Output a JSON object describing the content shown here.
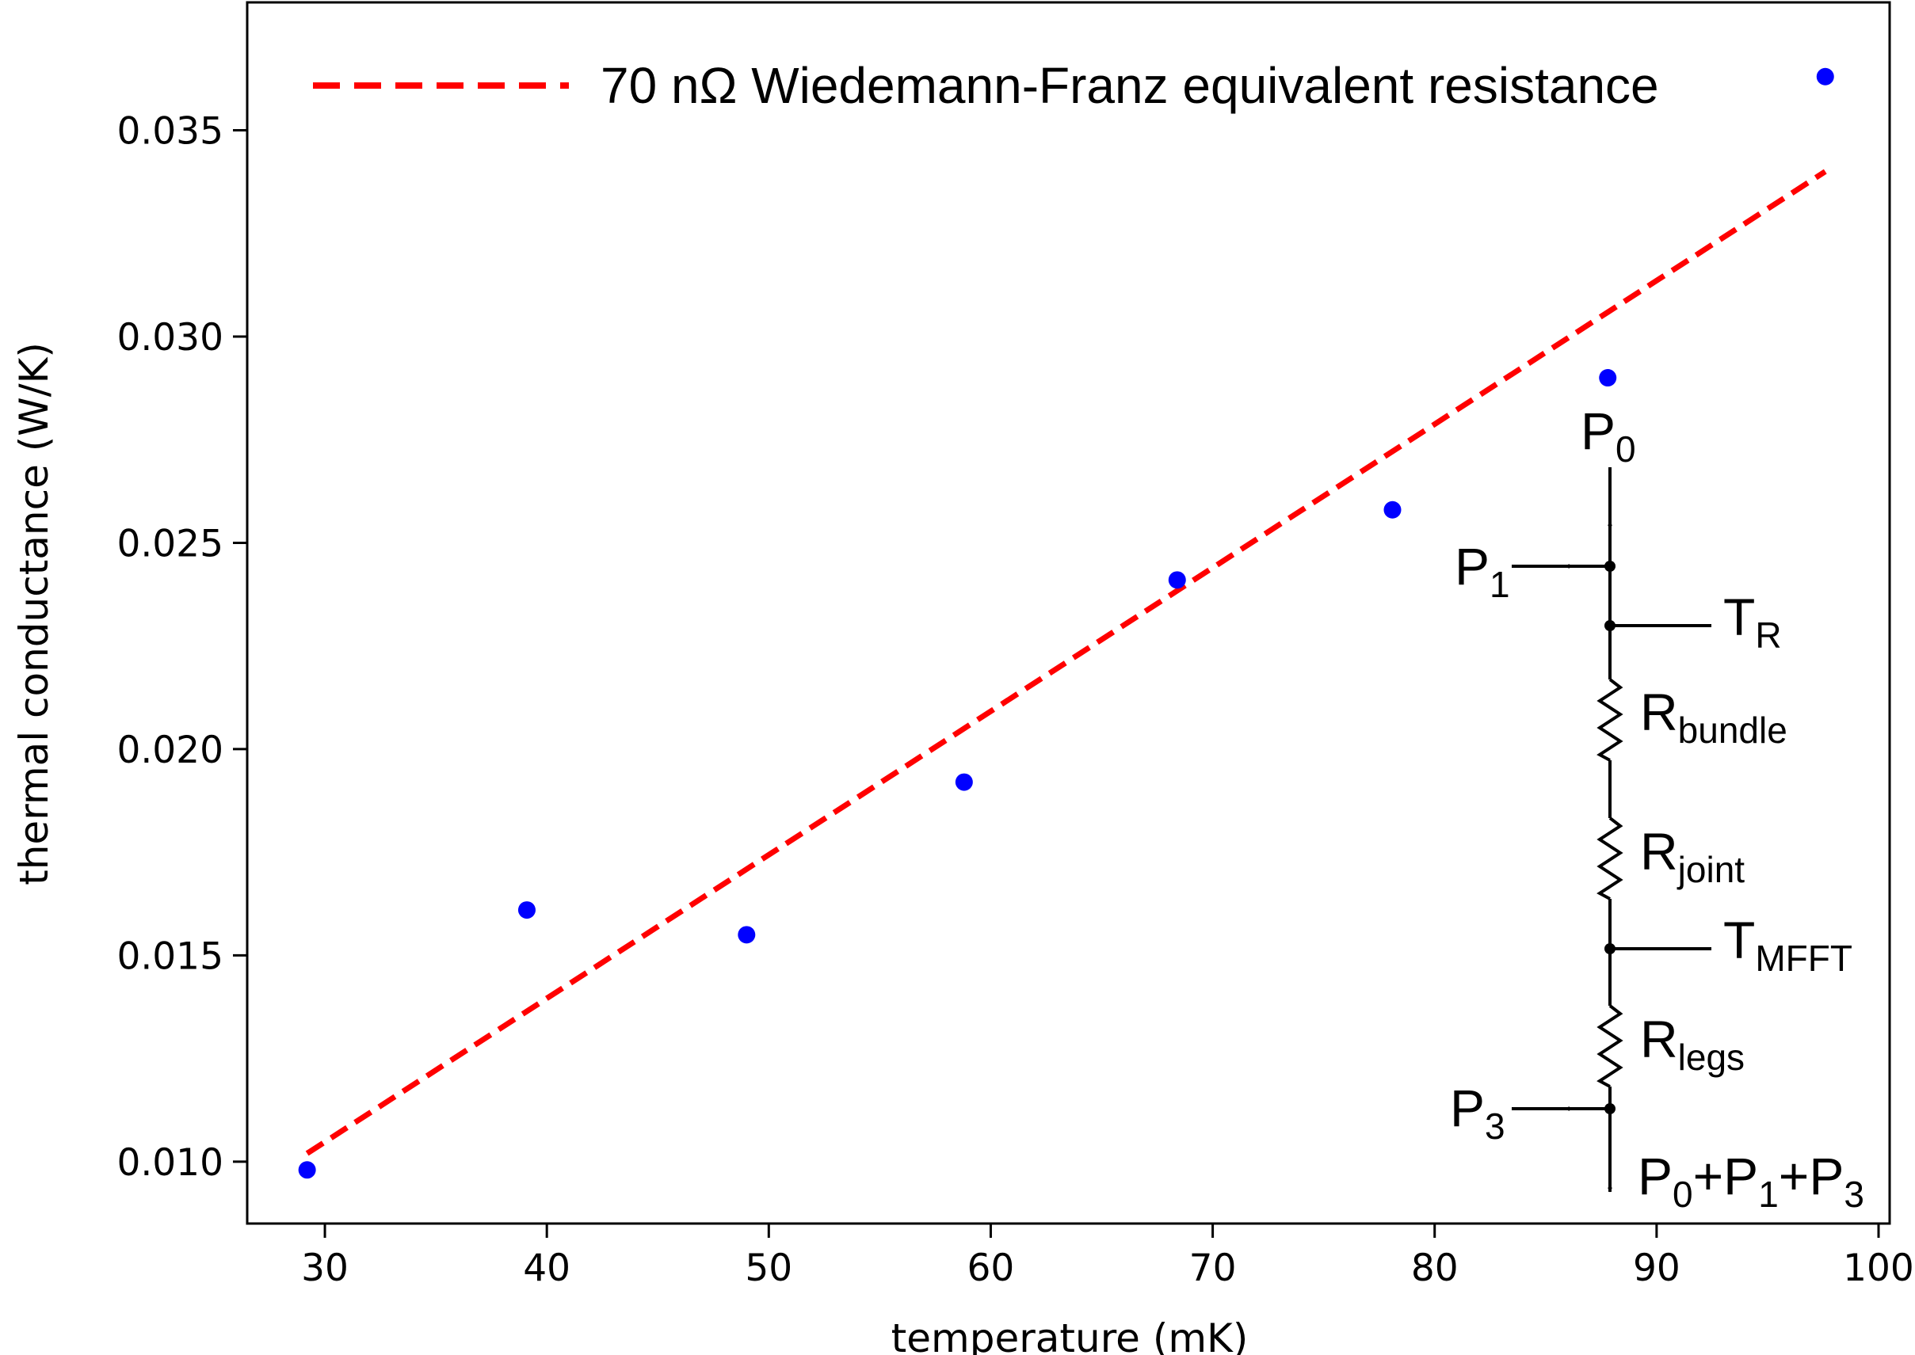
{
  "chart_data": {
    "type": "scatter",
    "xlabel": "temperature (mK)",
    "ylabel": "thermal conductance (W/K)",
    "xlim": [
      26.5,
      100.5
    ],
    "ylim": [
      0.0085,
      0.0381
    ],
    "xticks": [
      30,
      40,
      50,
      60,
      70,
      80,
      90,
      100
    ],
    "yticks": [
      0.01,
      0.015,
      0.02,
      0.025,
      0.03,
      0.035
    ],
    "xtick_labels": [
      "30",
      "40",
      "50",
      "60",
      "70",
      "80",
      "90",
      "100"
    ],
    "ytick_labels": [
      "0.010",
      "0.015",
      "0.020",
      "0.025",
      "0.030",
      "0.035"
    ],
    "grid": false,
    "legend_position": "top",
    "series": [
      {
        "kind": "scatter",
        "color": "#0000ff",
        "x": [
          29.2,
          39.1,
          49.0,
          58.8,
          68.4,
          78.1,
          87.8,
          97.6
        ],
        "y": [
          0.0098,
          0.0161,
          0.0155,
          0.0192,
          0.0241,
          0.0258,
          0.029,
          0.0363
        ]
      },
      {
        "kind": "line",
        "name": "70 nΩ Wiedemann-Franz equivalent resistance",
        "color": "#ff0000",
        "dash": "dashed",
        "x": [
          29.2,
          97.6
        ],
        "y": [
          0.0102,
          0.034
        ]
      }
    ]
  },
  "circuit": {
    "labels": {
      "p0": {
        "main": "P",
        "sub": "0"
      },
      "p1": {
        "main": "P",
        "sub": "1"
      },
      "tr": {
        "main": "T",
        "sub": "R"
      },
      "r_bundle": {
        "main": "R",
        "sub": "bundle"
      },
      "r_joint": {
        "main": "R",
        "sub": "joint"
      },
      "t_mfft": {
        "main": "T",
        "sub": "MFFT"
      },
      "r_legs": {
        "main": "R",
        "sub": "legs"
      },
      "p3": {
        "main": "P",
        "sub": "3"
      },
      "out_p0": {
        "main": "P",
        "sub": "0"
      },
      "out_p1": {
        "main": "+P",
        "sub": "1"
      },
      "out_p3": {
        "main": "+P",
        "sub": "3"
      }
    }
  }
}
